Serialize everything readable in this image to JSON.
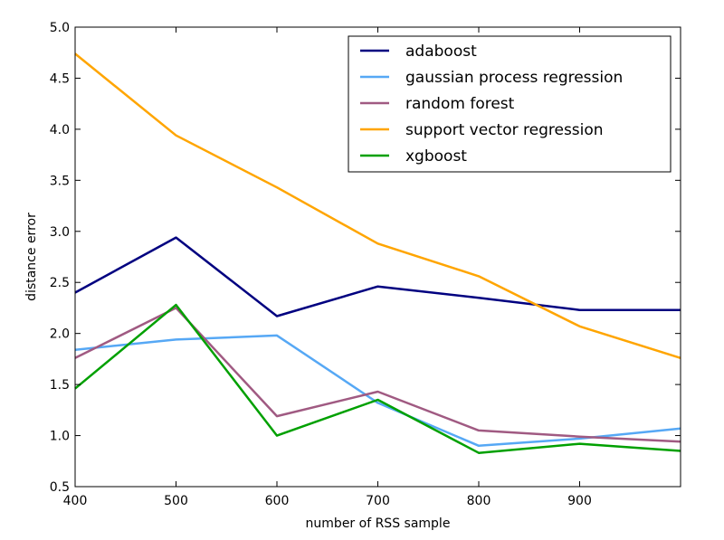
{
  "chart_data": {
    "type": "line",
    "xlabel": "number of RSS sample",
    "ylabel": "distance error",
    "xlim": [
      400,
      1000
    ],
    "ylim": [
      0.5,
      5.0
    ],
    "xticks": [
      "400",
      "500",
      "600",
      "700",
      "800",
      "900"
    ],
    "yticks": [
      "0.5",
      "1.0",
      "1.5",
      "2.0",
      "2.5",
      "3.0",
      "3.5",
      "4.0",
      "4.5",
      "5.0"
    ],
    "grid": false,
    "legend_position": "top-right",
    "x": [
      400,
      500,
      600,
      700,
      800,
      900,
      1000
    ],
    "series": [
      {
        "name": "adaboost",
        "color": "#000080",
        "values": [
          2.4,
          2.94,
          2.17,
          2.46,
          2.35,
          2.23,
          2.23
        ]
      },
      {
        "name": "gaussian process regression",
        "color": "#56a8f5",
        "values": [
          1.84,
          1.94,
          1.98,
          1.32,
          0.9,
          0.97,
          1.07
        ]
      },
      {
        "name": "random forest",
        "color": "#a05a82",
        "values": [
          1.76,
          2.25,
          1.19,
          1.43,
          1.05,
          0.99,
          0.94
        ]
      },
      {
        "name": "support vector regression",
        "color": "#ffa500",
        "values": [
          4.74,
          3.94,
          3.43,
          2.88,
          2.56,
          2.07,
          1.76
        ]
      },
      {
        "name": "xgboost",
        "color": "#00a000",
        "values": [
          1.46,
          2.28,
          1.0,
          1.35,
          0.83,
          0.92,
          0.85
        ]
      }
    ]
  }
}
